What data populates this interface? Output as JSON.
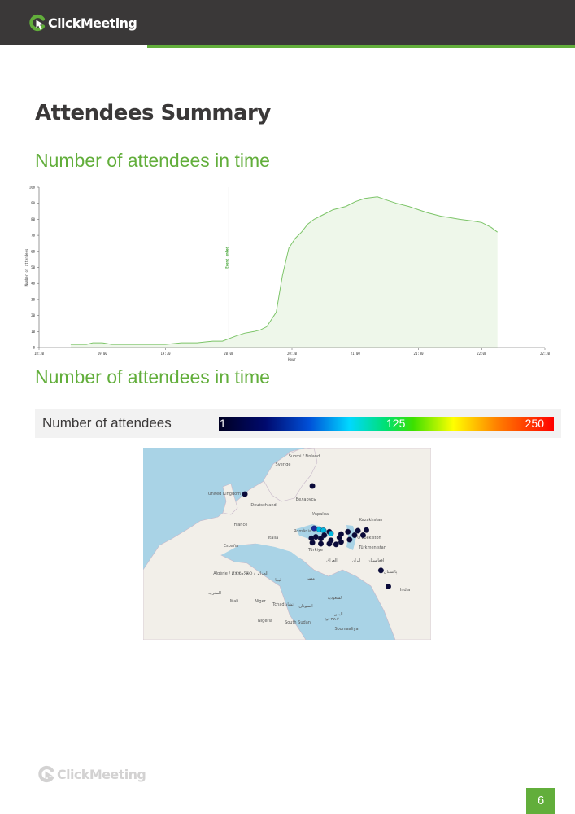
{
  "header": {
    "brand": "ClickMeeting"
  },
  "page": {
    "title": "Attendees Summary",
    "section1_title": "Number of attendees in time",
    "section2_title": "Number of attendees in time",
    "page_number": "6"
  },
  "legend": {
    "label": "Number of attendees",
    "min": "1",
    "mid": "125",
    "max": "250"
  },
  "footer": {
    "brand": "ClickMeeting"
  },
  "colors": {
    "brand_green": "#62ae3b",
    "header_dark": "#3a3838",
    "area_fill": "#eef7ea"
  },
  "chart_data": {
    "type": "area",
    "xlabel": "Hour",
    "ylabel": "Number of attendees",
    "ylim": [
      0,
      100
    ],
    "xlim": [
      0,
      16
    ],
    "x_ticks": [
      "18:30",
      "19:00",
      "19:30",
      "20:00",
      "20:30",
      "21:00",
      "21:30",
      "22:00",
      "22:30"
    ],
    "y_ticks": [
      0,
      10,
      20,
      30,
      40,
      50,
      60,
      70,
      80,
      90,
      100
    ],
    "annotation": {
      "label": "Event ended",
      "x": 6
    },
    "x": [
      1,
      1.5,
      1.7,
      2,
      2.3,
      2.5,
      3,
      3.5,
      4,
      4.5,
      5,
      5.5,
      5.8,
      6.2,
      6.5,
      6.8,
      7,
      7.2,
      7.5,
      7.7,
      7.9,
      8.1,
      8.3,
      8.5,
      8.7,
      9,
      9.3,
      9.7,
      10,
      10.3,
      10.7,
      11,
      11.3,
      11.7,
      12,
      12.3,
      12.7,
      13,
      13.3,
      13.7,
      14,
      14.3,
      14.5
    ],
    "values": [
      2,
      2,
      3,
      3,
      2,
      2,
      2,
      2,
      2,
      3,
      3,
      4,
      4,
      7,
      9,
      10,
      11,
      13,
      22,
      45,
      62,
      68,
      72,
      77,
      80,
      83,
      86,
      88,
      91,
      93,
      94,
      92,
      90,
      88,
      86,
      84,
      82,
      81,
      80,
      79,
      78,
      75,
      72
    ]
  },
  "map": {
    "countries": [
      "Sverige",
      "Suomi / Finland",
      "United Kingdom",
      "Deutschland",
      "Беларусь",
      "Україна",
      "France",
      "România",
      "Italia",
      "España",
      "Türkiye",
      "Oʻzbekiston",
      "Türkmenistan",
      "Kazakhstan",
      "ایران",
      "العراق",
      "افغانستان",
      "پاکستان",
      "India",
      "Algérie / ⵍⵣⵣⴰⵢⴻⵔ / الجزائر",
      "ليبيا",
      "مصر",
      "المغرب",
      "Mali",
      "Niger",
      "Tchad تشاد",
      "السودان",
      "Nigeria",
      "South Sudan",
      "ኢትዮጵያ",
      "Soomaaliya",
      "السعودية",
      "اليمن"
    ],
    "markers": [
      {
        "lat": 51.5,
        "lon": 7.5,
        "count": 5
      },
      {
        "lat": 53.9,
        "lon": 27.5,
        "count": 3
      },
      {
        "lat": 41.5,
        "lon": 28.0,
        "count": 40
      },
      {
        "lat": 41.2,
        "lon": 29.5,
        "count": 100
      },
      {
        "lat": 40.9,
        "lon": 30.8,
        "count": 120
      },
      {
        "lat": 40.5,
        "lon": 32.5,
        "count": 25
      },
      {
        "lat": 40.0,
        "lon": 33.0,
        "count": 90
      },
      {
        "lat": 39.5,
        "lon": 31.0,
        "count": 30
      },
      {
        "lat": 39.0,
        "lon": 28.5,
        "count": 20
      },
      {
        "lat": 38.5,
        "lon": 30.0,
        "count": 15
      },
      {
        "lat": 38.8,
        "lon": 35.5,
        "count": 8
      },
      {
        "lat": 39.8,
        "lon": 36.0,
        "count": 10
      },
      {
        "lat": 40.5,
        "lon": 38.0,
        "count": 12
      },
      {
        "lat": 40.8,
        "lon": 41.0,
        "count": 6
      },
      {
        "lat": 39.5,
        "lon": 40.0,
        "count": 8
      },
      {
        "lat": 38.2,
        "lon": 38.5,
        "count": 5
      },
      {
        "lat": 37.5,
        "lon": 36.0,
        "count": 9
      },
      {
        "lat": 37.0,
        "lon": 32.5,
        "count": 7
      },
      {
        "lat": 37.0,
        "lon": 30.0,
        "count": 9
      },
      {
        "lat": 36.8,
        "lon": 34.5,
        "count": 6
      },
      {
        "lat": 37.3,
        "lon": 27.5,
        "count": 12
      },
      {
        "lat": 38.0,
        "lon": 33.0,
        "count": 18
      },
      {
        "lat": 38.6,
        "lon": 27.2,
        "count": 10
      },
      {
        "lat": 41.0,
        "lon": 43.5,
        "count": 4
      },
      {
        "lat": 39.5,
        "lon": 42.5,
        "count": 3
      },
      {
        "lat": 29.2,
        "lon": 47.8,
        "count": 3
      },
      {
        "lat": 24.5,
        "lon": 50.0,
        "count": 2
      }
    ]
  }
}
